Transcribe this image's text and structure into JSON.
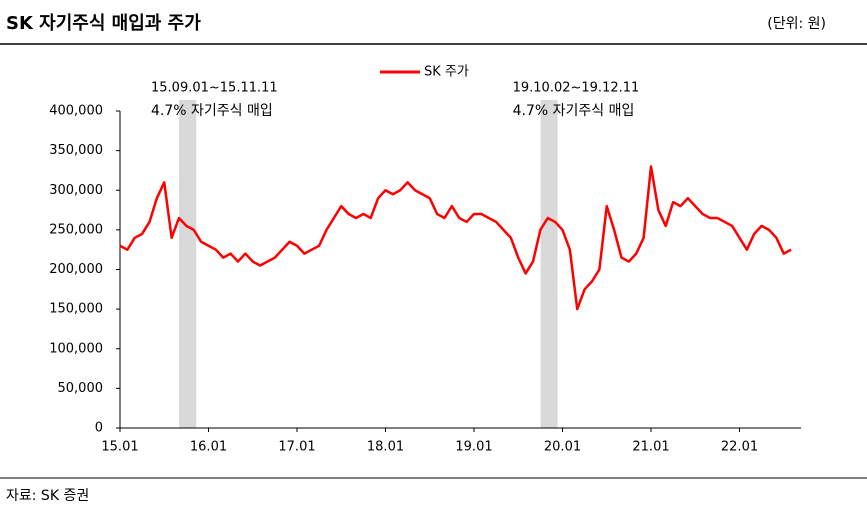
{
  "header": {
    "title": "SK 자기주식 매입과 주가",
    "unit": "(단위: 원)"
  },
  "source": "자료: SK 증권",
  "chart_data": {
    "type": "line",
    "categories": [
      "15.01",
      null,
      null,
      null,
      null,
      null,
      null,
      null,
      null,
      null,
      null,
      null,
      "16.01",
      null,
      null,
      null,
      null,
      null,
      null,
      null,
      null,
      null,
      null,
      null,
      "17.01",
      null,
      null,
      null,
      null,
      null,
      null,
      null,
      null,
      null,
      null,
      null,
      "18.01",
      null,
      null,
      null,
      null,
      null,
      null,
      null,
      null,
      null,
      null,
      null,
      "19.01",
      null,
      null,
      null,
      null,
      null,
      null,
      null,
      null,
      null,
      null,
      null,
      "20.01",
      null,
      null,
      null,
      null,
      null,
      null,
      null,
      null,
      null,
      null,
      null,
      "21.01",
      null,
      null,
      null,
      null,
      null,
      null,
      null,
      null,
      null,
      null,
      null,
      "22.01",
      null,
      null,
      null,
      null,
      null,
      null,
      null
    ],
    "series": [
      {
        "name": "SK 주가",
        "color": "#ff0000",
        "values": [
          230000,
          225000,
          240000,
          245000,
          260000,
          290000,
          310000,
          240000,
          265000,
          255000,
          250000,
          235000,
          230000,
          225000,
          215000,
          220000,
          210000,
          220000,
          210000,
          205000,
          210000,
          215000,
          225000,
          235000,
          230000,
          220000,
          225000,
          230000,
          250000,
          265000,
          280000,
          270000,
          265000,
          270000,
          265000,
          290000,
          300000,
          295000,
          300000,
          310000,
          300000,
          295000,
          290000,
          270000,
          265000,
          280000,
          265000,
          260000,
          270000,
          270000,
          265000,
          260000,
          250000,
          240000,
          215000,
          195000,
          210000,
          250000,
          265000,
          260000,
          250000,
          225000,
          150000,
          175000,
          185000,
          200000,
          280000,
          250000,
          215000,
          210000,
          220000,
          240000,
          330000,
          275000,
          255000,
          285000,
          280000,
          290000,
          280000,
          270000,
          265000,
          265000,
          260000,
          255000,
          240000,
          225000,
          245000,
          255000,
          250000,
          240000,
          220000,
          225000
        ]
      }
    ],
    "ylim": [
      0,
      400000
    ],
    "yticks": [
      0,
      {
        "value": 50000,
        "label": "50,000"
      },
      {
        "value": 100000,
        "label": "100,000"
      },
      {
        "value": 150000,
        "label": "150,000"
      },
      {
        "value": 200000,
        "label": "200,000"
      },
      {
        "value": 250000,
        "label": "250,000"
      },
      {
        "value": 300000,
        "label": "300,000"
      },
      {
        "value": 350000,
        "label": "350,000"
      },
      {
        "value": 400000,
        "label": "400,000"
      }
    ],
    "annotations": [
      {
        "period": "15.09.01~15.11.11",
        "text": "4.7% 자기주식 매입"
      },
      {
        "period": "19.10.02~19.12.11",
        "text": "4.7% 자기주식 매입"
      }
    ]
  }
}
